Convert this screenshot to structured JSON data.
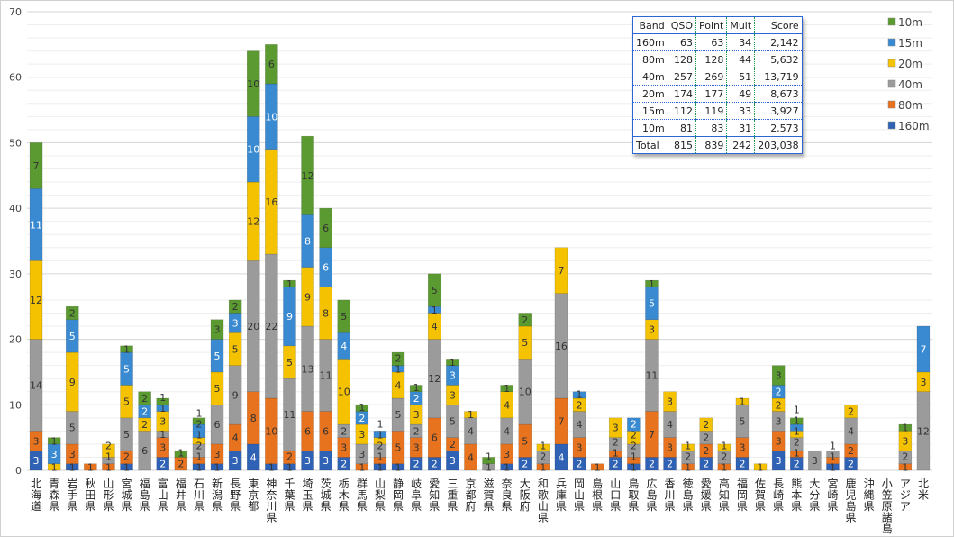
{
  "chart_data": {
    "type": "bar",
    "stacked": true,
    "ylim": [
      0,
      70
    ],
    "yticks": [
      0,
      10,
      20,
      30,
      40,
      50,
      60,
      70
    ],
    "grid": true,
    "legend_position": "top-right",
    "categories": [
      "北海道",
      "青森県",
      "岩手県",
      "秋田県",
      "山形県",
      "宮城県",
      "福島県",
      "富山県",
      "福井県",
      "石川県",
      "新潟県",
      "長野県",
      "東京都",
      "神奈川県",
      "千葉県",
      "埼玉県",
      "茨城県",
      "栃木県",
      "群馬県",
      "山梨県",
      "静岡県",
      "岐阜県",
      "愛知県",
      "三重県",
      "京都府",
      "滋賀県",
      "奈良県",
      "大阪府",
      "和歌山県",
      "兵庫県",
      "岡山県",
      "島根県",
      "山口県",
      "鳥取県",
      "広島県",
      "香川県",
      "徳島県",
      "愛媛県",
      "高知県",
      "福岡県",
      "佐賀県",
      "長崎県",
      "熊本県",
      "大分県",
      "宮崎県",
      "鹿児島県",
      "沖縄県",
      "小笠原諸島",
      "アジア",
      "北米"
    ],
    "series": [
      {
        "name": "160m",
        "color": "#2f62b5",
        "values": [
          3,
          0,
          1,
          0,
          0,
          1,
          0,
          2,
          0,
          1,
          1,
          3,
          4,
          1,
          1,
          3,
          3,
          2,
          0,
          1,
          1,
          2,
          2,
          3,
          0,
          0,
          1,
          2,
          0,
          4,
          2,
          0,
          2,
          1,
          2,
          2,
          0,
          2,
          0,
          2,
          0,
          3,
          2,
          0,
          1,
          2,
          0,
          0,
          0,
          0
        ]
      },
      {
        "name": "80m",
        "color": "#e8731f",
        "values": [
          3,
          0,
          3,
          1,
          1,
          2,
          0,
          3,
          2,
          1,
          3,
          4,
          8,
          10,
          2,
          6,
          6,
          3,
          1,
          1,
          5,
          3,
          6,
          2,
          4,
          0,
          3,
          5,
          1,
          7,
          3,
          1,
          1,
          1,
          7,
          3,
          1,
          2,
          1,
          3,
          0,
          3,
          1,
          0,
          1,
          2,
          0,
          0,
          1,
          0
        ]
      },
      {
        "name": "40m",
        "color": "#9b9b9b",
        "values": [
          14,
          0,
          5,
          0,
          1,
          5,
          6,
          1,
          0,
          2,
          6,
          9,
          20,
          22,
          11,
          13,
          11,
          2,
          3,
          2,
          5,
          2,
          12,
          5,
          4,
          1,
          4,
          10,
          2,
          16,
          4,
          0,
          2,
          2,
          11,
          4,
          2,
          2,
          2,
          5,
          0,
          3,
          2,
          3,
          1,
          4,
          0,
          0,
          2,
          12
        ]
      },
      {
        "name": "20m",
        "color": "#f4c200",
        "values": [
          12,
          1,
          9,
          0,
          2,
          5,
          2,
          3,
          0,
          1,
          5,
          5,
          12,
          16,
          5,
          9,
          8,
          10,
          3,
          1,
          4,
          3,
          4,
          3,
          1,
          0,
          4,
          5,
          1,
          7,
          2,
          0,
          3,
          2,
          3,
          3,
          1,
          2,
          1,
          1,
          1,
          2,
          1,
          0,
          0,
          2,
          0,
          0,
          3,
          3
        ]
      },
      {
        "name": "15m",
        "color": "#3a8ad2",
        "values": [
          11,
          3,
          5,
          0,
          0,
          5,
          2,
          1,
          0,
          2,
          5,
          3,
          10,
          10,
          9,
          8,
          6,
          4,
          2,
          1,
          1,
          2,
          1,
          3,
          0,
          0,
          0,
          0,
          0,
          0,
          1,
          0,
          0,
          2,
          5,
          0,
          0,
          0,
          0,
          0,
          0,
          2,
          1,
          0,
          0,
          0,
          0,
          0,
          0,
          7
        ]
      },
      {
        "name": "10m",
        "color": "#5a9a30",
        "values": [
          7,
          1,
          2,
          0,
          0,
          1,
          2,
          1,
          1,
          1,
          3,
          2,
          10,
          6,
          1,
          12,
          6,
          5,
          1,
          0,
          2,
          1,
          5,
          1,
          0,
          1,
          1,
          2,
          0,
          0,
          0,
          0,
          0,
          0,
          1,
          0,
          0,
          0,
          0,
          0,
          0,
          3,
          1,
          0,
          0,
          0,
          0,
          0,
          1,
          0
        ]
      }
    ]
  },
  "table": {
    "headers": [
      "Band",
      "QSO",
      "Point",
      "Mult",
      "Score"
    ],
    "rows": [
      [
        "160m",
        "63",
        "63",
        "34",
        "2,142"
      ],
      [
        "80m",
        "128",
        "128",
        "44",
        "5,632"
      ],
      [
        "40m",
        "257",
        "269",
        "51",
        "13,719"
      ],
      [
        "20m",
        "174",
        "177",
        "49",
        "8,673"
      ],
      [
        "15m",
        "112",
        "119",
        "33",
        "3,927"
      ],
      [
        "10m",
        "81",
        "83",
        "31",
        "2,573"
      ]
    ],
    "total": [
      "Total",
      "815",
      "839",
      "242",
      "203,038"
    ]
  }
}
